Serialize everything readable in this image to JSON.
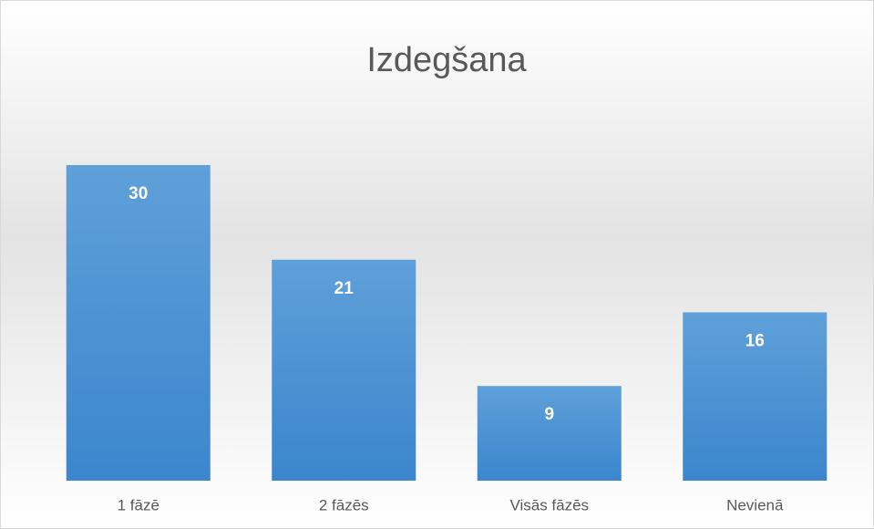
{
  "chart_data": {
    "type": "bar",
    "title": "Izdegšana",
    "categories": [
      "1 fāzē",
      "2 fāzēs",
      "Visās fāzēs",
      "Nevienā"
    ],
    "values": [
      30,
      21,
      9,
      16
    ],
    "color": "#4a90d6"
  }
}
